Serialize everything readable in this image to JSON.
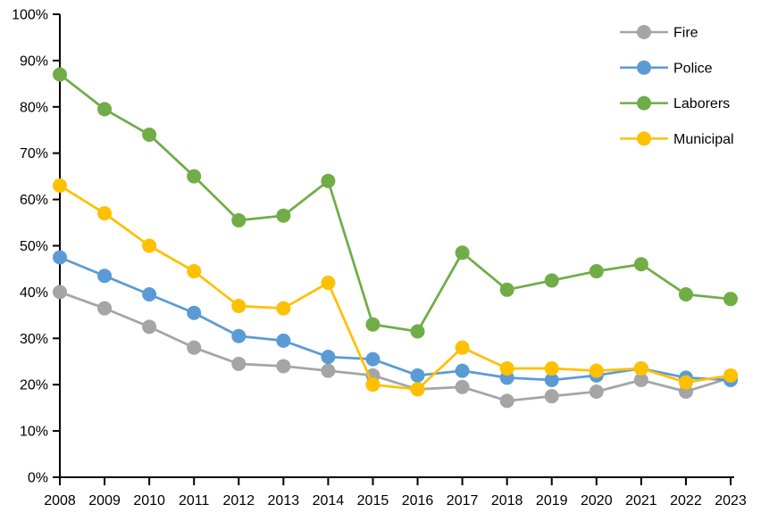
{
  "chart_data": {
    "type": "line",
    "title": "",
    "xlabel": "",
    "ylabel": "",
    "categories": [
      "2008",
      "2009",
      "2010",
      "2011",
      "2012",
      "2013",
      "2014",
      "2015",
      "2016",
      "2017",
      "2018",
      "2019",
      "2020",
      "2021",
      "2022",
      "2023"
    ],
    "series": [
      {
        "name": "Fire",
        "color": "#A5A5A5",
        "values": [
          40,
          36.5,
          32.5,
          28,
          24.5,
          24,
          23,
          22,
          19,
          19.5,
          16.5,
          17.5,
          18.5,
          21,
          18.5,
          21.5
        ]
      },
      {
        "name": "Police",
        "color": "#5B9BD5",
        "values": [
          47.5,
          43.5,
          39.5,
          35.5,
          30.5,
          29.5,
          26,
          25.5,
          22,
          23,
          21.5,
          21,
          22,
          23.5,
          21.5,
          21
        ]
      },
      {
        "name": "Laborers",
        "color": "#70AD47",
        "values": [
          87,
          79.5,
          74,
          65,
          55.5,
          56.5,
          64,
          33,
          31.5,
          48.5,
          40.5,
          42.5,
          44.5,
          46,
          39.5,
          38.5
        ]
      },
      {
        "name": "Municipal",
        "color": "#FFC000",
        "values": [
          63,
          57,
          50,
          44.5,
          37,
          36.5,
          42,
          20,
          19,
          28,
          23.5,
          23.5,
          23,
          23.5,
          20.5,
          22
        ]
      }
    ],
    "ylim": [
      0,
      100
    ],
    "y_tick_step": 10,
    "y_tick_labels": [
      "0%",
      "10%",
      "20%",
      "30%",
      "40%",
      "50%",
      "60%",
      "70%",
      "80%",
      "90%",
      "100%"
    ],
    "grid": false,
    "legend_position": "top-right",
    "axis_color": "#000000"
  }
}
